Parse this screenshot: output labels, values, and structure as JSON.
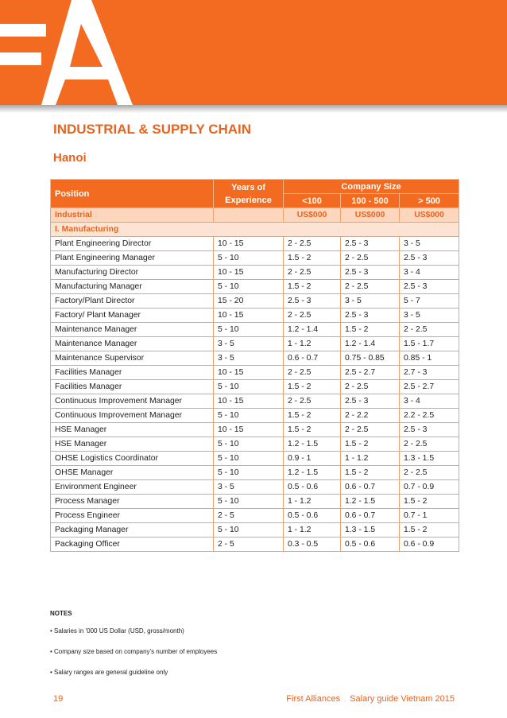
{
  "header": {
    "logo_alt": "FA",
    "title": "INDUSTRIAL & SUPPLY CHAIN",
    "location": "Hanoi"
  },
  "table": {
    "headers": {
      "position": "Position",
      "years_line1": "Years of",
      "years_line2": "Experience",
      "company_size": "Company Size",
      "size_small": "<100",
      "size_medium": "100 - 500",
      "size_large": "> 500"
    },
    "section": {
      "label": "Industrial",
      "unit_small": "US$000",
      "unit_medium": "US$000",
      "unit_large": "US$000"
    },
    "subsection": "I. Manufacturing",
    "rows": [
      {
        "position": "Plant Engineering Director",
        "years": "10 - 15",
        "small": "2 - 2.5",
        "medium": "2.5 - 3",
        "large": "3 - 5"
      },
      {
        "position": "Plant Engineering Manager",
        "years": "5 - 10",
        "small": "1.5 - 2",
        "medium": "2 - 2.5",
        "large": "2.5 - 3"
      },
      {
        "position": "Manufacturing Director",
        "years": "10 - 15",
        "small": "2 - 2.5",
        "medium": "2.5 - 3",
        "large": "3 - 4"
      },
      {
        "position": "Manufacturing Manager",
        "years": "5 - 10",
        "small": "1.5 - 2",
        "medium": "2 - 2.5",
        "large": "2.5 - 3"
      },
      {
        "position": "Factory/Plant Director",
        "years": "15 - 20",
        "small": "2.5 - 3",
        "medium": "3 - 5",
        "large": "5 - 7"
      },
      {
        "position": "Factory/ Plant Manager",
        "years": "10 - 15",
        "small": "2 - 2.5",
        "medium": "2.5 - 3",
        "large": "3 - 5"
      },
      {
        "position": "Maintenance Manager",
        "years": "5 - 10",
        "small": "1.2 - 1.4",
        "medium": "1.5 - 2",
        "large": "2 - 2.5"
      },
      {
        "position": "Maintenance Manager",
        "years": "3 - 5",
        "small": "1 - 1.2",
        "medium": "1.2 - 1.4",
        "large": "1.5 - 1.7"
      },
      {
        "position": "Maintenance Supervisor",
        "years": "3 - 5",
        "small": "0.6 - 0.7",
        "medium": "0.75 - 0.85",
        "large": "0.85 - 1"
      },
      {
        "position": "Facilities Manager",
        "years": "10 - 15",
        "small": "2 - 2.5",
        "medium": "2.5 - 2.7",
        "large": "2.7 - 3"
      },
      {
        "position": "Facilities Manager",
        "years": "5 - 10",
        "small": "1.5 - 2",
        "medium": "2 - 2.5",
        "large": "2.5 - 2.7"
      },
      {
        "position": "Continuous Improvement Manager",
        "years": "10 - 15",
        "small": "2 - 2.5",
        "medium": "2.5 - 3",
        "large": "3 - 4"
      },
      {
        "position": "Continuous Improvement Manager",
        "years": "5 - 10",
        "small": "1.5 - 2",
        "medium": "2 - 2.2",
        "large": "2.2 - 2.5"
      },
      {
        "position": "HSE Manager",
        "years": "10 - 15",
        "small": "1.5 - 2",
        "medium": "2 - 2.5",
        "large": "2.5 - 3"
      },
      {
        "position": "HSE Manager",
        "years": "5 - 10",
        "small": "1.2 - 1.5",
        "medium": "1.5 - 2",
        "large": "2 - 2.5"
      },
      {
        "position": "OHSE Logistics Coordinator",
        "years": "5 - 10",
        "small": "0.9 - 1",
        "medium": "1 - 1.2",
        "large": "1.3 - 1.5"
      },
      {
        "position": "OHSE Manager",
        "years": "5 - 10",
        "small": "1.2 - 1.5",
        "medium": "1.5 - 2",
        "large": "2 - 2.5"
      },
      {
        "position": "Environment Engineer",
        "years": "3 - 5",
        "small": "0.5 - 0.6",
        "medium": "0.6 - 0.7",
        "large": "0.7 - 0.9"
      },
      {
        "position": "Process Manager",
        "years": "5 - 10",
        "small": "1 - 1.2",
        "medium": "1.2 - 1.5",
        "large": "1.5 - 2"
      },
      {
        "position": "Process Engineer",
        "years": "2 - 5",
        "small": "0.5 - 0.6",
        "medium": "0.6 - 0.7",
        "large": "0.7 - 1"
      },
      {
        "position": "Packaging Manager",
        "years": "5 - 10",
        "small": "1 - 1.2",
        "medium": "1.3 - 1.5",
        "large": "1.5 - 2"
      },
      {
        "position": "Packaging Officer",
        "years": "2 - 5",
        "small": "0.3 - 0.5",
        "medium": "0.5 - 0.6",
        "large": "0.6 - 0.9"
      }
    ]
  },
  "notes": {
    "title": "NOTES",
    "items": [
      "• Salaries in '000 US Dollar (USD, gross/month)",
      "• Company size based on company's number of employees",
      "• Salary ranges are general guideline only"
    ]
  },
  "footer": {
    "page_number": "19",
    "brand": "First Alliances",
    "separator": ".",
    "guide": "Salary guide Vietnam 2015"
  },
  "colors": {
    "brand_orange": "#f26b21",
    "text_orange": "#e8641e",
    "row_tint": "#fcd7bd"
  }
}
